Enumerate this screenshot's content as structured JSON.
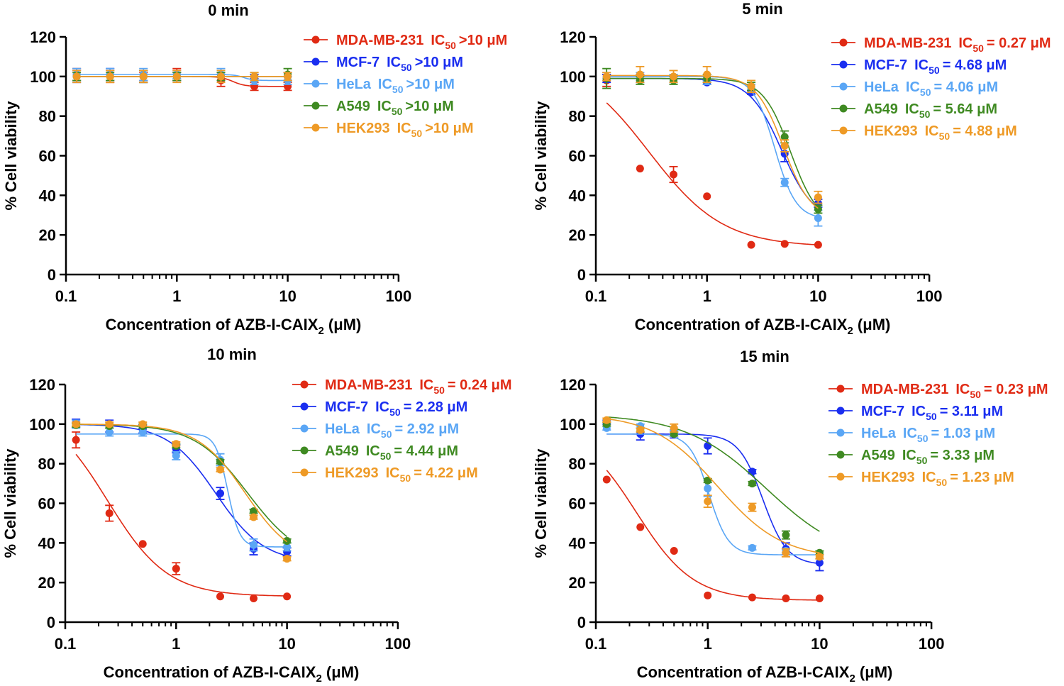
{
  "chart_data": [
    {
      "type": "line",
      "title": "0 min",
      "xlabel": "Concentration of AZB-I-CAIX",
      "xlabel_sub": "2",
      "xlabel_unit": " (μM)",
      "ylabel": "% Cell viability",
      "xscale": "log",
      "xlim": [
        0.1,
        100
      ],
      "ylim": [
        0,
        120
      ],
      "xticks": [
        "0.1",
        "1",
        "10",
        "100"
      ],
      "yticks": [
        "0",
        "20",
        "40",
        "60",
        "80",
        "100",
        "120"
      ],
      "legend_position": "top-right",
      "x": [
        0.125,
        0.25,
        0.5,
        1,
        2.5,
        5,
        10
      ],
      "series": [
        {
          "name": "MDA-MB-231",
          "ic50": ">10 μM",
          "color": "#e02a14",
          "values": [
            101,
            100,
            100,
            101,
            98,
            95,
            95
          ],
          "err": [
            3,
            3,
            2,
            3,
            3,
            2,
            2
          ],
          "fit": {
            "top": 100,
            "bottom": 95,
            "ic50": 3.2,
            "hill": 8
          }
        },
        {
          "name": "MCF-7",
          "ic50": ">10 μM",
          "color": "#1a2ef0",
          "values": [
            100,
            101,
            100,
            100,
            100,
            100,
            100
          ],
          "err": [
            3,
            3,
            3,
            2,
            2,
            1,
            2
          ],
          "fit": {
            "top": 100,
            "bottom": 100,
            "ic50": 5,
            "hill": 1
          }
        },
        {
          "name": "HeLa",
          "ic50": ">10 μM",
          "color": "#5aa6f5",
          "values": [
            101,
            101,
            101,
            101,
            101,
            98,
            98
          ],
          "err": [
            3,
            3,
            3,
            2,
            3,
            2,
            2
          ],
          "fit": {
            "top": 101,
            "bottom": 98,
            "ic50": 4,
            "hill": 10
          }
        },
        {
          "name": "A549",
          "ic50": ">10 μM",
          "color": "#3f8a22",
          "values": [
            100,
            100,
            100,
            100,
            100,
            100,
            101
          ],
          "err": [
            2,
            2,
            3,
            2,
            2,
            2,
            3
          ],
          "fit": {
            "top": 100,
            "bottom": 100,
            "ic50": 5,
            "hill": 1
          }
        },
        {
          "name": "HEK293",
          "ic50": ">10 μM",
          "color": "#ee9a26",
          "values": [
            100,
            100,
            100,
            100,
            100,
            100,
            100
          ],
          "err": [
            3,
            3,
            3,
            3,
            3,
            2,
            2
          ],
          "fit": {
            "top": 100,
            "bottom": 100,
            "ic50": 5,
            "hill": 1
          }
        }
      ]
    },
    {
      "type": "line",
      "title": "5 min",
      "xlabel": "Concentration of AZB-I-CAIX",
      "xlabel_sub": "2",
      "xlabel_unit": " (μM)",
      "ylabel": "% Cell viability",
      "xscale": "log",
      "xlim": [
        0.1,
        100
      ],
      "ylim": [
        0,
        120
      ],
      "xticks": [
        "0.1",
        "1",
        "10",
        "100"
      ],
      "yticks": [
        "0",
        "20",
        "40",
        "60",
        "80",
        "100",
        "120"
      ],
      "legend_position": "top-right",
      "x": [
        0.125,
        0.25,
        0.5,
        1,
        2.5,
        5,
        10
      ],
      "series": [
        {
          "name": "MDA-MB-231",
          "ic50": "= 0.27 μM",
          "color": "#e02a14",
          "values": [
            98,
            53.5,
            50.5,
            39.5,
            15,
            15.5,
            15
          ],
          "err": [
            3,
            0,
            4,
            0,
            0,
            0,
            0
          ],
          "fit": {
            "top": 110,
            "bottom": 14,
            "ic50": 0.3,
            "hill": 1.3
          }
        },
        {
          "name": "MCF-7",
          "ic50": "= 4.68 μM",
          "color": "#1a2ef0",
          "values": [
            99,
            99,
            99,
            97,
            92,
            61,
            36
          ],
          "err": [
            2,
            2,
            2,
            1,
            1,
            4,
            2
          ],
          "fit": {
            "top": 99,
            "bottom": 27,
            "ic50": 4.68,
            "hill": 3
          }
        },
        {
          "name": "HeLa",
          "ic50": "= 4.06 μM",
          "color": "#5aa6f5",
          "values": [
            100,
            100,
            99,
            98,
            94,
            46.5,
            28.5
          ],
          "err": [
            2,
            2,
            2,
            2,
            2,
            2,
            4
          ],
          "fit": {
            "top": 100,
            "bottom": 28,
            "ic50": 4.06,
            "hill": 4.5
          }
        },
        {
          "name": "A549",
          "ic50": "= 5.64 μM",
          "color": "#3f8a22",
          "values": [
            99,
            98,
            98,
            99,
            95,
            69.5,
            33
          ],
          "err": [
            5,
            2,
            2,
            2,
            2,
            3,
            2
          ],
          "fit": {
            "top": 99,
            "bottom": 25,
            "ic50": 5.64,
            "hill": 3.5
          }
        },
        {
          "name": "HEK293",
          "ic50": "= 4.88 μM",
          "color": "#ee9a26",
          "values": [
            100,
            101,
            100,
            101,
            95,
            65,
            39
          ],
          "err": [
            2,
            4,
            3,
            4,
            3,
            3,
            3
          ],
          "fit": {
            "top": 100.5,
            "bottom": 28,
            "ic50": 4.88,
            "hill": 3.5
          }
        }
      ]
    },
    {
      "type": "line",
      "title": "10 min",
      "xlabel": "Concentration of AZB-I-CAIX",
      "xlabel_sub": "2",
      "xlabel_unit": " (μM)",
      "ylabel": "% Cell viability",
      "xscale": "log",
      "xlim": [
        0.1,
        100
      ],
      "ylim": [
        0,
        120
      ],
      "xticks": [
        "0.1",
        "1",
        "10",
        "100"
      ],
      "yticks": [
        "0",
        "20",
        "40",
        "60",
        "80",
        "100",
        "120"
      ],
      "legend_position": "top-right",
      "x": [
        0.125,
        0.25,
        0.5,
        1,
        2.5,
        5,
        10
      ],
      "series": [
        {
          "name": "MDA-MB-231",
          "ic50": "= 0.24 μM",
          "color": "#e02a14",
          "values": [
            92,
            55,
            39.5,
            27,
            13,
            12,
            13
          ],
          "err": [
            4,
            4,
            0,
            3,
            0,
            0,
            0
          ],
          "fit": {
            "top": 110,
            "bottom": 13,
            "ic50": 0.24,
            "hill": 1.6
          }
        },
        {
          "name": "MCF-7",
          "ic50": "= 2.28 μM",
          "color": "#1a2ef0",
          "values": [
            100.5,
            99,
            97.5,
            87.5,
            65,
            37,
            35.5
          ],
          "err": [
            2,
            3,
            2,
            2,
            3,
            3,
            2
          ],
          "fit": {
            "top": 100,
            "bottom": 30,
            "ic50": 2.28,
            "hill": 2
          }
        },
        {
          "name": "HeLa",
          "ic50": "= 2.92 μM",
          "color": "#5aa6f5",
          "values": [
            100,
            96,
            96,
            84,
            82,
            39,
            38
          ],
          "err": [
            2,
            2,
            2,
            2,
            3,
            3,
            2
          ],
          "fit": {
            "top": 95,
            "bottom": 38,
            "ic50": 2.92,
            "hill": 8
          }
        },
        {
          "name": "A549",
          "ic50": "= 4.44 μM",
          "color": "#3f8a22",
          "values": [
            99.5,
            99,
            99,
            89,
            81,
            56,
            41
          ],
          "err": [
            1,
            1,
            1,
            1,
            1,
            1,
            1
          ],
          "fit": {
            "top": 100,
            "bottom": 30,
            "ic50": 4.44,
            "hill": 1.8
          }
        },
        {
          "name": "HEK293",
          "ic50": "= 4.22 μM",
          "color": "#ee9a26",
          "values": [
            100,
            100,
            100,
            90,
            77,
            53,
            32
          ],
          "err": [
            1,
            1,
            1,
            1,
            1,
            1,
            1
          ],
          "fit": {
            "top": 100,
            "bottom": 30,
            "ic50": 4.22,
            "hill": 2
          }
        }
      ]
    },
    {
      "type": "line",
      "title": "15 min",
      "xlabel": "Concentration of AZB-I-CAIX",
      "xlabel_sub": "2",
      "xlabel_unit": " (μM)",
      "ylabel": "% Cell viability",
      "xscale": "log",
      "xlim": [
        0.1,
        100
      ],
      "ylim": [
        0,
        120
      ],
      "xticks": [
        "0.1",
        "1",
        "10",
        "100"
      ],
      "yticks": [
        "0",
        "20",
        "40",
        "60",
        "80",
        "100",
        "120"
      ],
      "legend_position": "top-right",
      "x": [
        0.125,
        0.25,
        0.5,
        1,
        2.5,
        5,
        10
      ],
      "series": [
        {
          "name": "MDA-MB-231",
          "ic50": "= 0.23 μM",
          "color": "#e02a14",
          "values": [
            72,
            48,
            36,
            13.5,
            12.5,
            12,
            12
          ],
          "err": [
            0,
            0,
            0,
            0,
            0,
            0,
            0
          ],
          "fit": {
            "top": 100,
            "bottom": 11,
            "ic50": 0.23,
            "hill": 1.7
          }
        },
        {
          "name": "MCF-7",
          "ic50": "= 3.11 μM",
          "color": "#1a2ef0",
          "values": [
            101,
            95,
            95,
            89,
            76,
            37,
            30
          ],
          "err": [
            1,
            3,
            2,
            4,
            1,
            3,
            4
          ],
          "fit": {
            "top": 95,
            "bottom": 29,
            "ic50": 3.11,
            "hill": 4
          }
        },
        {
          "name": "HeLa",
          "ic50": "= 1.03 μM",
          "color": "#5aa6f5",
          "values": [
            98,
            99,
            96,
            67.5,
            37.5,
            36,
            33
          ],
          "err": [
            1,
            1,
            1,
            4,
            1,
            1,
            1
          ],
          "fit": {
            "top": 95,
            "bottom": 34,
            "ic50": 1.03,
            "hill": 5
          }
        },
        {
          "name": "A549",
          "ic50": "= 3.33 μM",
          "color": "#3f8a22",
          "values": [
            100,
            97,
            95,
            71.5,
            70,
            44,
            35
          ],
          "err": [
            1,
            1,
            1,
            1,
            1,
            2,
            1
          ],
          "fit": {
            "top": 105,
            "bottom": 30,
            "ic50": 3.33,
            "hill": 1.2
          }
        },
        {
          "name": "HEK293",
          "ic50": "= 1.23 μM",
          "color": "#ee9a26",
          "values": [
            102,
            97,
            98,
            61,
            58,
            35,
            33
          ],
          "err": [
            1,
            1,
            2,
            3,
            2,
            2,
            1
          ],
          "fit": {
            "top": 105,
            "bottom": 32,
            "ic50": 1.23,
            "hill": 1.5
          }
        }
      ]
    }
  ]
}
